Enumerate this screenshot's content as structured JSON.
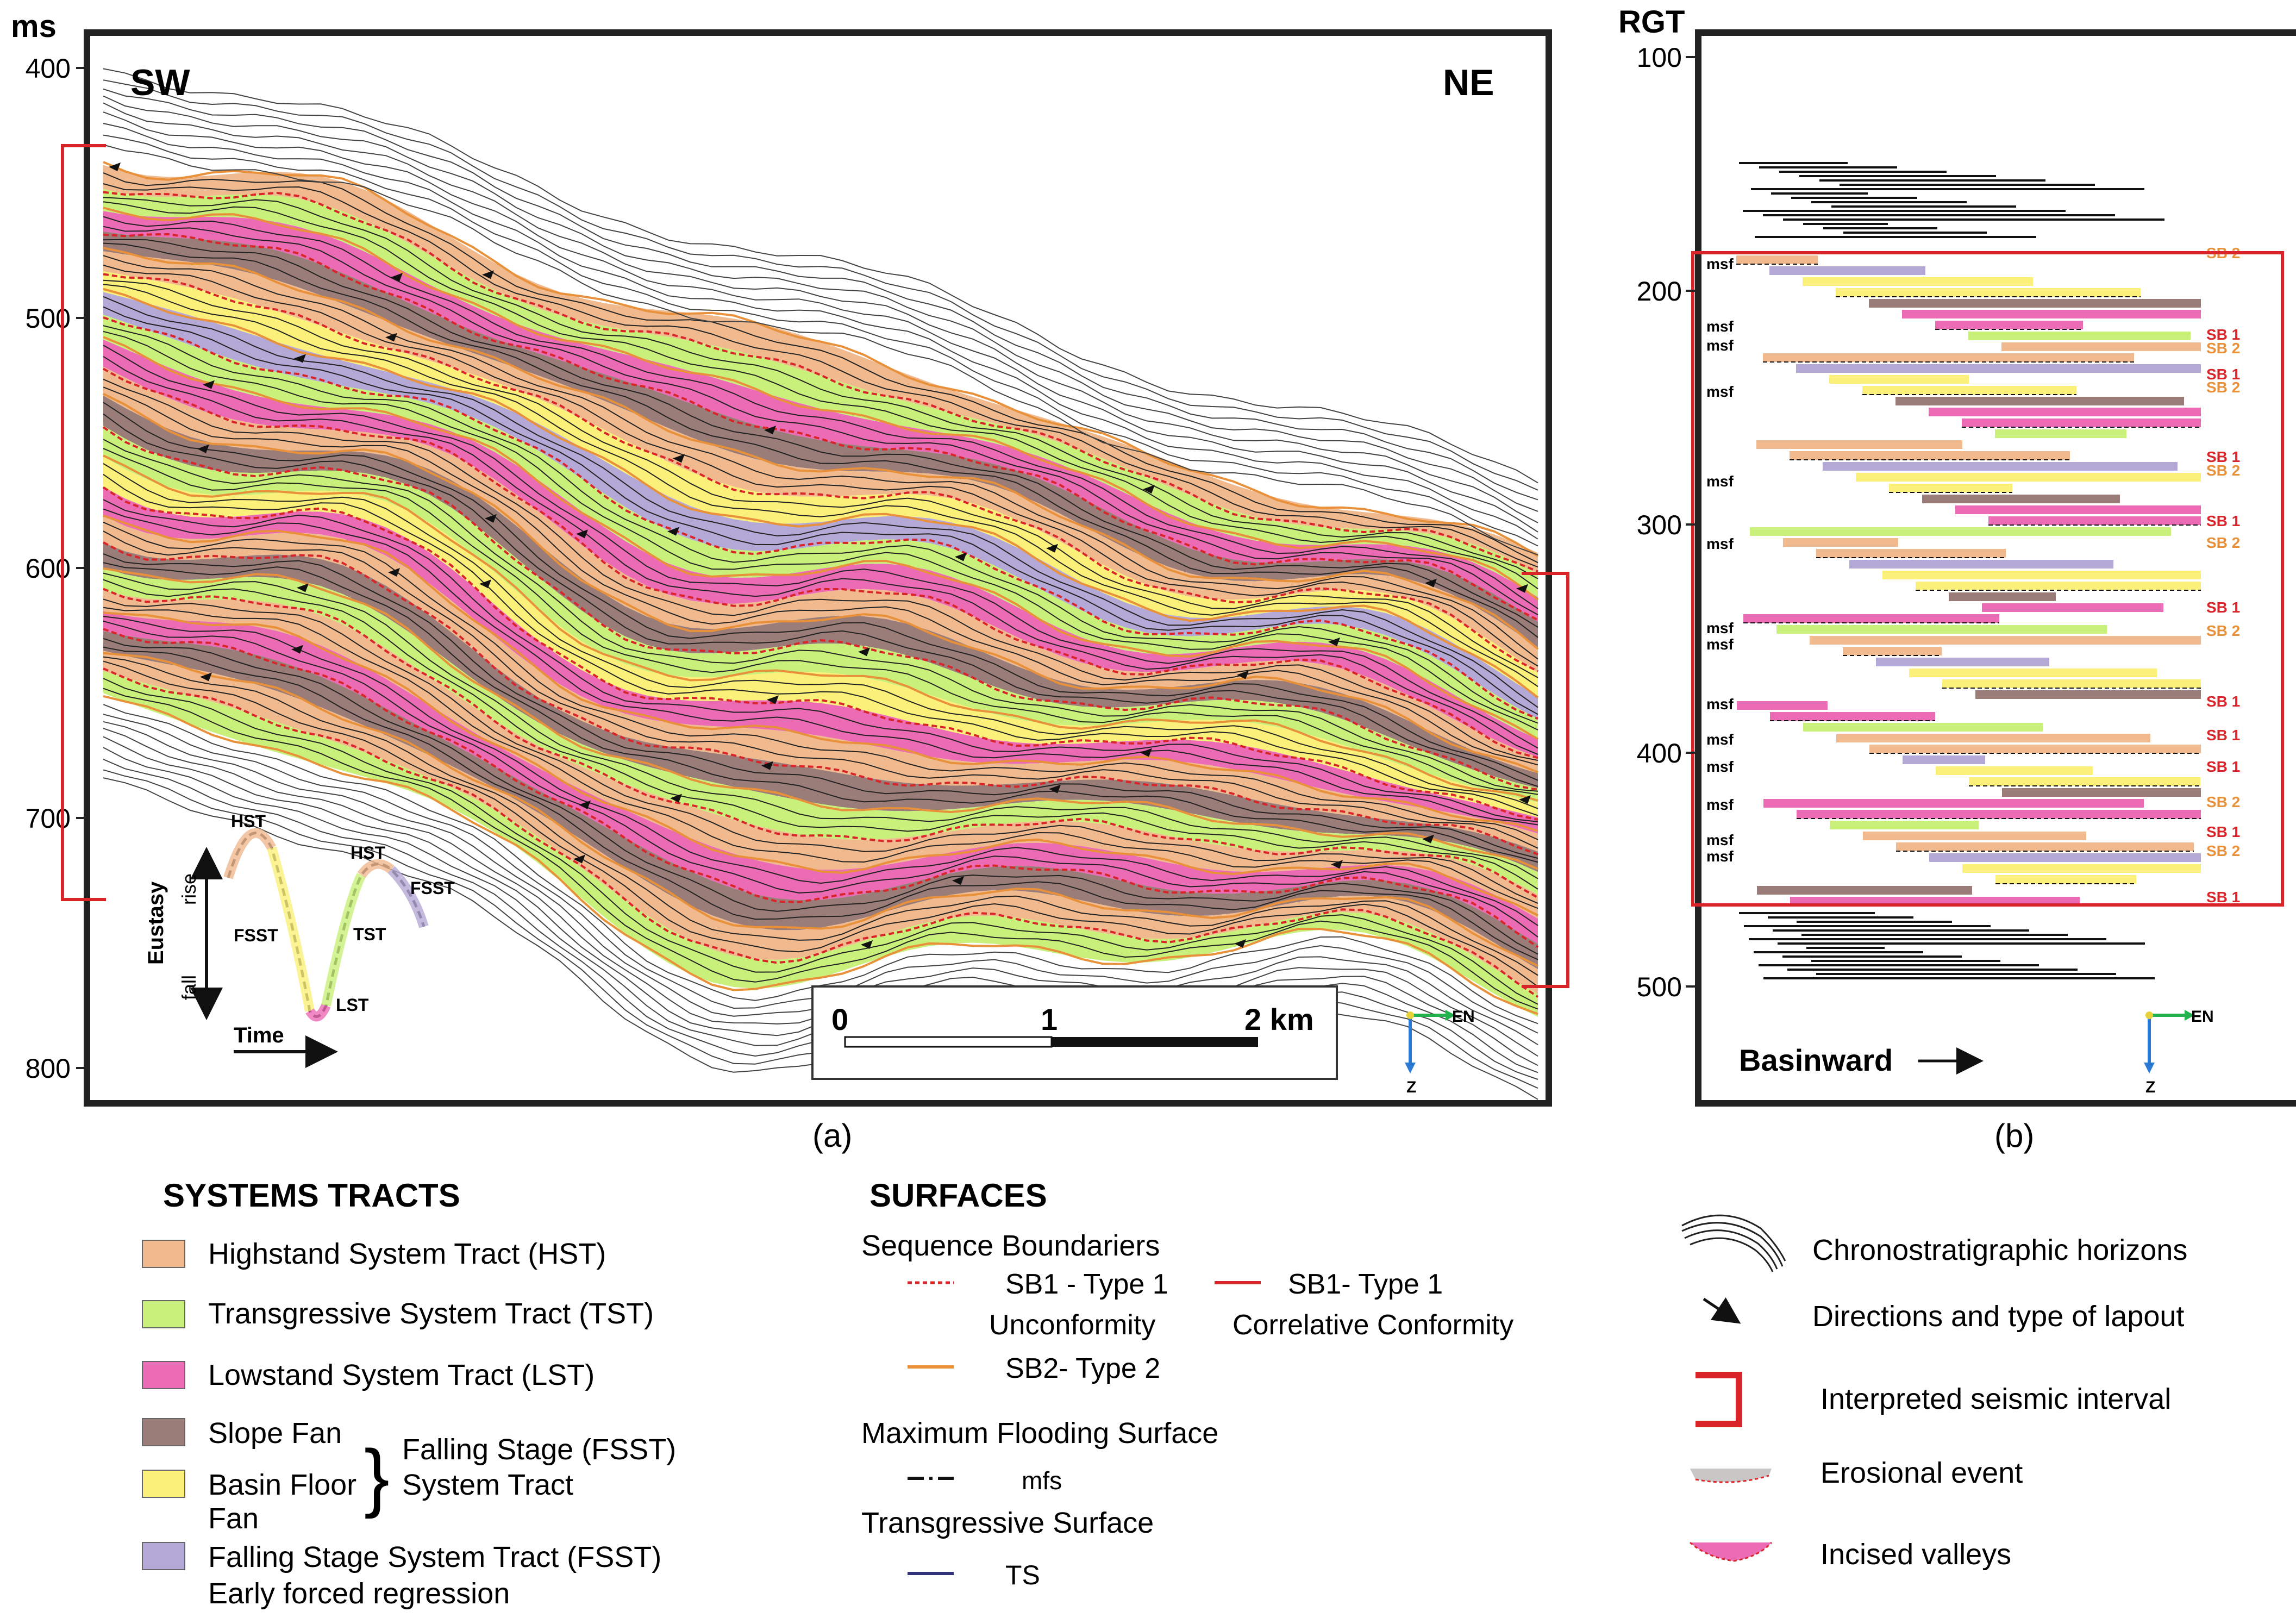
{
  "panel_a": {
    "y_unit": "ms",
    "y_ticks": [
      "400",
      "500",
      "600",
      "700",
      "800"
    ],
    "left_label": "SW",
    "right_label": "NE",
    "caption": "(a)",
    "scale_bar": {
      "start": "0",
      "mid": "1",
      "end": "2 km"
    },
    "axis_east": "EN",
    "axis_down": "Z",
    "inset": {
      "y_title": "Eustasy",
      "rise": "rise",
      "fall": "fall",
      "x_title": "Time",
      "labels": [
        "HST",
        "FSST",
        "LST",
        "TST",
        "HST",
        "FSST"
      ]
    }
  },
  "panel_b": {
    "y_unit": "RGT",
    "y_ticks": [
      "100",
      "200",
      "300",
      "400",
      "500"
    ],
    "caption": "(b)",
    "basinward": "Basinward",
    "axis_east": "EN",
    "axis_down": "Z",
    "msf_label": "msf",
    "right_labels": [
      "SB 2",
      "SB 1",
      "SB 2",
      "SB 1",
      "SB 2",
      "SB 1",
      "SB 2",
      "SB 1",
      "SB 2",
      "SB 1",
      "SB 2",
      "SB 1",
      "SB 1",
      "SB 1",
      "SB 2",
      "SB 1",
      "SB 2",
      "SB 1"
    ]
  },
  "legend_systems": {
    "title": "SYSTEMS TRACTS",
    "items": [
      {
        "label": "Highstand System Tract (HST)",
        "color": "#f0b98e"
      },
      {
        "label": "Transgressive System Tract (TST)",
        "color": "#c8f07a"
      },
      {
        "label": "Lowstand System Tract (LST)",
        "color": "#ec6bb5"
      },
      {
        "label": "Slope Fan",
        "color": "#9a7c78"
      },
      {
        "label": "Basin Floor",
        "label2": "Fan",
        "color": "#fbf07a"
      },
      {
        "label": "Falling Stage System Tract (FSST)",
        "label2": "Early forced regression",
        "color": "#b4a9d6"
      }
    ],
    "bracket_label1": "Falling Stage (FSST)",
    "bracket_label2": "System Tract"
  },
  "legend_surfaces": {
    "title": "SURFACES",
    "seq_title": "Sequence Boundariers",
    "sb1_unconf": "SB1 - Type 1",
    "sb1_unconf2": "Unconformity",
    "sb1_corr": "SB1- Type 1",
    "sb1_corr2": "Correlative Conformity",
    "sb2": "SB2- Type 2",
    "mfs_title": "Maximum Flooding Surface",
    "mfs": "mfs",
    "ts_title": "Transgressive Surface",
    "ts": "TS"
  },
  "legend_other": {
    "items": [
      "Chronostratigraphic horizons",
      "Directions and type of lapout",
      "Interpreted seismic interval",
      "Erosional event",
      "Incised valleys"
    ]
  },
  "colors": {
    "hst": "#f0b98e",
    "tst": "#c8f07a",
    "lst": "#ec6bb5",
    "slope": "#9a7c78",
    "basin": "#fbf07a",
    "fsst": "#b4a9d6",
    "red": "#d9242a",
    "orange": "#e8913a",
    "ts": "#33337a"
  }
}
